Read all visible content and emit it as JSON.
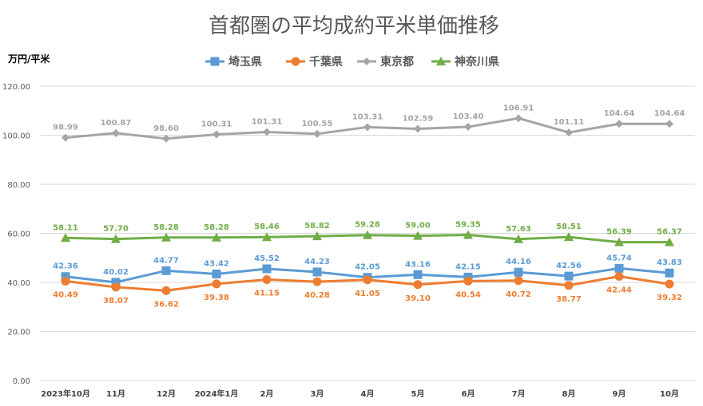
{
  "chart_data": {
    "type": "line",
    "title": "首都圏の平均成約平米単価推移",
    "ylabel": "万円/平米",
    "xlabel": "",
    "ylim": [
      0,
      120
    ],
    "yticks": [
      "0.00",
      "20.00",
      "40.00",
      "60.00",
      "80.00",
      "100.00",
      "120.00"
    ],
    "grid": "horizontal",
    "legend_position": "top",
    "categories": [
      "2023年10月",
      "11月",
      "12月",
      "2024年1月",
      "2月",
      "3月",
      "4月",
      "5月",
      "6月",
      "7月",
      "8月",
      "9月",
      "10月"
    ],
    "series": [
      {
        "name": "埼玉県",
        "color": "#5b9bd5",
        "marker": "square",
        "values": [
          42.36,
          40.02,
          44.77,
          43.42,
          45.52,
          44.23,
          42.05,
          43.16,
          42.15,
          44.16,
          42.56,
          45.74,
          43.83
        ],
        "labels": [
          "42.36",
          "40.02",
          "44.77",
          "43.42",
          "45.52",
          "44.23",
          "42.05",
          "43.16",
          "42.15",
          "44.16",
          "42.56",
          "45.74",
          "43.83"
        ],
        "label_pos": "above"
      },
      {
        "name": "千葉県",
        "color": "#ed7d31",
        "marker": "circle",
        "values": [
          40.49,
          38.07,
          36.62,
          39.38,
          41.15,
          40.28,
          41.05,
          39.1,
          40.54,
          40.72,
          38.77,
          42.44,
          39.32
        ],
        "labels": [
          "40.49",
          "38.07",
          "36.62",
          "39.38",
          "41.15",
          "40.28",
          "41.05",
          "39.10",
          "40.54",
          "40.72",
          "38.77",
          "42.44",
          "39.32"
        ],
        "label_pos": "below"
      },
      {
        "name": "東京都",
        "color": "#a5a5a5",
        "marker": "diamond",
        "values": [
          98.99,
          100.87,
          98.6,
          100.31,
          101.31,
          100.55,
          103.31,
          102.59,
          103.4,
          106.91,
          101.11,
          104.64,
          104.64
        ],
        "labels": [
          "98.99",
          "100.87",
          "98.60",
          "100.31",
          "101.31",
          "100.55",
          "103.31",
          "102.59",
          "103.40",
          "106.91",
          "101.11",
          "104.64",
          "104.64"
        ],
        "label_pos": "above"
      },
      {
        "name": "神奈川県",
        "color": "#70ad47",
        "marker": "triangle",
        "values": [
          58.11,
          57.7,
          58.28,
          58.28,
          58.46,
          58.82,
          59.28,
          59.0,
          59.35,
          57.63,
          58.51,
          56.39,
          56.37
        ],
        "labels": [
          "58.11",
          "57.70",
          "58.28",
          "58.28",
          "58.46",
          "58.82",
          "59.28",
          "59.00",
          "59.35",
          "57.63",
          "58.51",
          "56.39",
          "56.37"
        ],
        "label_pos": "above"
      }
    ]
  }
}
